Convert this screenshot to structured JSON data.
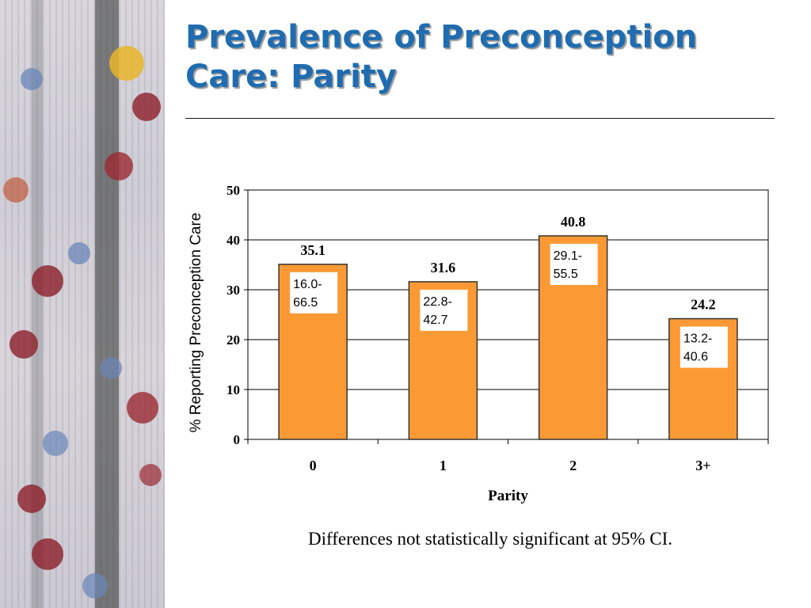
{
  "slide": {
    "title_line1": "Prevalence of Preconception",
    "title_line2": "Care: Parity",
    "footnote": "Differences not statistically significant at 95% CI."
  },
  "colors": {
    "title": "#1f6cb0",
    "bar": "#fb9a35",
    "bar_border": "#333333"
  },
  "chart_data": {
    "type": "bar",
    "title": "",
    "xlabel": "Parity",
    "ylabel": "% Reporting Preconception Care",
    "categories": [
      "0",
      "1",
      "2",
      "3+"
    ],
    "values": [
      35.1,
      31.6,
      40.8,
      24.2
    ],
    "value_labels": [
      "35.1",
      "31.6",
      "40.8",
      "24.2"
    ],
    "ci_labels": [
      [
        "16.0-",
        "66.5"
      ],
      [
        "22.8-",
        "42.7"
      ],
      [
        "29.1-",
        "55.5"
      ],
      [
        "13.2-",
        "40.6"
      ]
    ],
    "ylim": [
      0,
      50
    ],
    "yticks": [
      "0",
      "10",
      "20",
      "30",
      "40",
      "50"
    ],
    "grid": true,
    "legend": "none"
  }
}
